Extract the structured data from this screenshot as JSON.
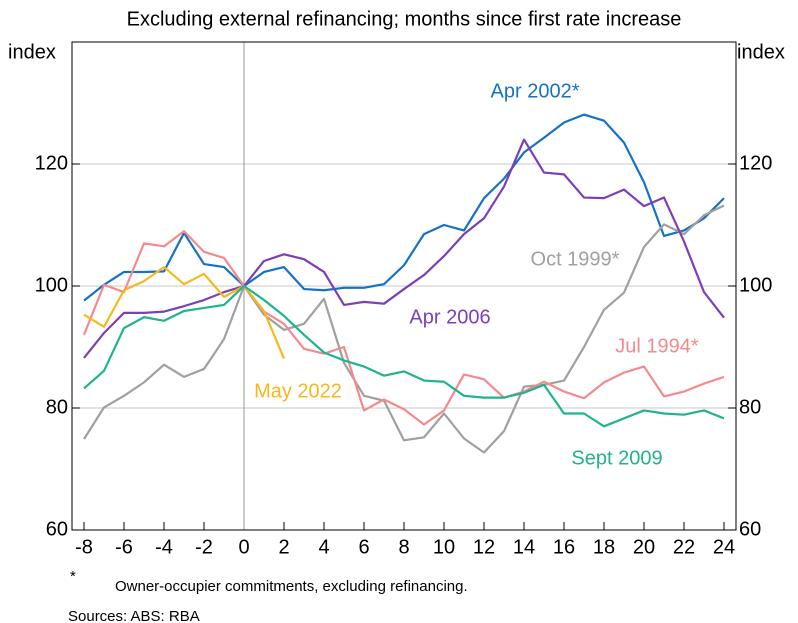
{
  "chart_data": {
    "type": "line",
    "title": "Excluding external refinancing; months since first rate increase",
    "ylabel": "index",
    "y2label": "index",
    "x": [
      -8,
      -7,
      -6,
      -5,
      -4,
      -3,
      -2,
      -1,
      0,
      1,
      2,
      3,
      4,
      5,
      6,
      7,
      8,
      9,
      10,
      11,
      12,
      13,
      14,
      15,
      16,
      17,
      18,
      19,
      20,
      21,
      22,
      23,
      24
    ],
    "xlim": [
      -8.6,
      24.6
    ],
    "xticks": [
      -8,
      -6,
      -4,
      -2,
      0,
      2,
      4,
      6,
      8,
      10,
      12,
      14,
      16,
      18,
      20,
      22,
      24
    ],
    "ylim": [
      60,
      140
    ],
    "yticks": [
      60,
      80,
      100,
      120
    ],
    "y2lim": [
      60,
      140
    ],
    "y2ticks": [
      60,
      80,
      100,
      120
    ],
    "grid": true,
    "series": [
      {
        "name": "Apr 2002*",
        "color": "#1672c4",
        "values": [
          97.6,
          100.2,
          102.3,
          102.3,
          102.4,
          108.7,
          103.6,
          103.1,
          100,
          102.3,
          103.1,
          99.5,
          99.3,
          99.7,
          99.7,
          100.3,
          103.4,
          108.5,
          110,
          109.1,
          114.4,
          117.6,
          121.9,
          124.3,
          126.8,
          128.1,
          127.1,
          123.5,
          117,
          108.2,
          109.1,
          111.1,
          114.4
        ]
      },
      {
        "name": "Oct 1999*",
        "color": "#a0a0a0",
        "values": [
          74.9,
          80.1,
          82,
          84.2,
          87.1,
          85.1,
          86.4,
          91.3,
          100,
          95.3,
          92.8,
          93.8,
          97.9,
          87.4,
          82,
          81.2,
          74.7,
          75.2,
          79.1,
          75,
          72.7,
          76.2,
          83.5,
          83.8,
          84.5,
          90,
          96.1,
          98.9,
          106.4,
          110.1,
          108.5,
          111.6,
          113.2
        ]
      },
      {
        "name": "Apr 2006",
        "color": "#7b3fb8",
        "values": [
          88.2,
          92.3,
          95.6,
          95.6,
          95.8,
          96.7,
          97.7,
          99,
          100,
          104.1,
          105.2,
          104.4,
          102.3,
          96.9,
          97.4,
          97.1,
          99.5,
          101.8,
          104.9,
          108.5,
          111.1,
          116.3,
          124,
          118.6,
          118.3,
          114.5,
          114.4,
          115.8,
          113.1,
          114.5,
          107.3,
          99,
          94.8
        ]
      },
      {
        "name": "Jul 1994*",
        "color": "#f48a8e",
        "values": [
          92,
          100.2,
          99,
          107,
          106.5,
          109,
          105.6,
          104.6,
          100,
          95.8,
          93.8,
          89.7,
          88.9,
          90,
          79.6,
          81.4,
          79.8,
          77.3,
          79.6,
          85.5,
          84.7,
          81.7,
          82.7,
          84.3,
          82.7,
          81.6,
          84.2,
          85.8,
          86.8,
          81.9,
          82.7,
          84,
          85.1
        ]
      },
      {
        "name": "May 2022",
        "color": "#f6b81c",
        "values": [
          95.3,
          93.3,
          99.3,
          100.8,
          103.1,
          100.3,
          102,
          98.2,
          100,
          95.9,
          88.1,
          null,
          null,
          null,
          null,
          null,
          null,
          null,
          null,
          null,
          null,
          null,
          null,
          null,
          null,
          null,
          null,
          null,
          null,
          null,
          null,
          null,
          null
        ]
      },
      {
        "name": "Sept 2009",
        "color": "#1fb48c",
        "values": [
          83.2,
          86.1,
          93.1,
          94.9,
          94.3,
          95.9,
          96.4,
          96.9,
          100,
          97.7,
          95.1,
          92,
          89.1,
          87.8,
          86.8,
          85.3,
          86,
          84.5,
          84.3,
          82,
          81.7,
          81.7,
          82.5,
          83.8,
          79.1,
          79.1,
          77,
          78.3,
          79.6,
          79.1,
          78.9,
          79.6,
          78.3
        ]
      }
    ],
    "footnote_marker": "*",
    "footnote": "Owner-occupier commitments, excluding refinancing.",
    "sources": "Sources: ABS: RBA"
  }
}
